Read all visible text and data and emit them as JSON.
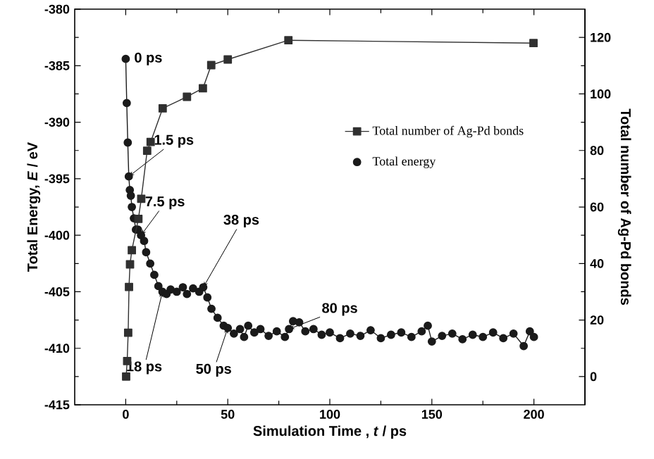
{
  "chart_data": {
    "type": "line",
    "xlabel": "Simulation Time , *t* / ps",
    "ylabel": "Total Energy, *E* / eV",
    "y2label": "Total number of Ag-Pd bonds",
    "xlim": [
      -25,
      225
    ],
    "xticks": [
      0,
      50,
      100,
      150,
      200
    ],
    "ylim": [
      -415,
      -380
    ],
    "yticks": [
      -415,
      -410,
      -405,
      -400,
      -395,
      -390,
      -385,
      -380
    ],
    "y2lim": [
      -10,
      130
    ],
    "y2ticks": [
      0,
      20,
      40,
      60,
      80,
      100,
      120
    ],
    "legend": "right",
    "line_style": "solid",
    "series": [
      {
        "name": "Total number of Ag-Pd bonds",
        "color": "#303030",
        "marker": "square",
        "axis": "y2",
        "x": [
          0.2,
          0.7,
          1.2,
          1.6,
          2.1,
          3,
          6.2,
          7.6,
          10.5,
          12.2,
          18.1,
          30,
          37.8,
          41.9,
          50,
          79.7,
          199.8
        ],
        "values": [
          0,
          5.5,
          15.5,
          31.7,
          39.7,
          44.7,
          55.8,
          62.9,
          79.9,
          83,
          94.9,
          99,
          102,
          110.2,
          112.2,
          119,
          118
        ]
      },
      {
        "name": "Total energy",
        "color": "#1a1a1a",
        "marker": "circle",
        "x": [
          0,
          0.5,
          1,
          1.5,
          2,
          2.5,
          3,
          4,
          5,
          6,
          7.5,
          9,
          10,
          12,
          14,
          16,
          18,
          20,
          22,
          25,
          28,
          30,
          33,
          36,
          38,
          40,
          42,
          45,
          48,
          50,
          53,
          56,
          58,
          60,
          63,
          66,
          70,
          74,
          78,
          80,
          82,
          85,
          88,
          92,
          96,
          100,
          105,
          110,
          115,
          120,
          125,
          130,
          135,
          140,
          145,
          148,
          150,
          155,
          160,
          165,
          170,
          175,
          180,
          185,
          190,
          195,
          198,
          200
        ],
        "values": [
          -384.4,
          -388.3,
          -391.8,
          -394.8,
          -396,
          -396.5,
          -397.5,
          -398.5,
          -399.5,
          -399.5,
          -400,
          -400.5,
          -401.5,
          -402.5,
          -403.5,
          -404.5,
          -405,
          -405.2,
          -404.8,
          -405,
          -404.6,
          -405.2,
          -404.7,
          -405,
          -404.6,
          -405.5,
          -406.5,
          -407.3,
          -408,
          -408.2,
          -408.7,
          -408.3,
          -409,
          -408,
          -408.6,
          -408.3,
          -408.9,
          -408.5,
          -409,
          -408.3,
          -407.6,
          -407.7,
          -408.5,
          -408.3,
          -408.8,
          -408.6,
          -409.1,
          -408.7,
          -408.9,
          -408.4,
          -409.1,
          -408.8,
          -408.6,
          -409,
          -408.5,
          -408,
          -409.4,
          -408.9,
          -408.7,
          -409.2,
          -408.8,
          -409,
          -408.6,
          -409.1,
          -408.7,
          -409.8,
          -408.5,
          -409
        ]
      }
    ],
    "annotations": [
      {
        "text": "0 ps",
        "x": 0,
        "y": -384.4
      },
      {
        "text": "1.5 ps",
        "x": 1.5,
        "y": -394.8
      },
      {
        "text": "7.5 ps",
        "x": 7.5,
        "y": -400
      },
      {
        "text": "38 ps",
        "x": 38,
        "y": -404.6
      },
      {
        "text": "18 ps",
        "x": 18,
        "y": -405
      },
      {
        "text": "50 ps",
        "x": 50,
        "y": -408.2
      },
      {
        "text": "80 ps",
        "x": 80,
        "y": -408.3
      }
    ]
  }
}
